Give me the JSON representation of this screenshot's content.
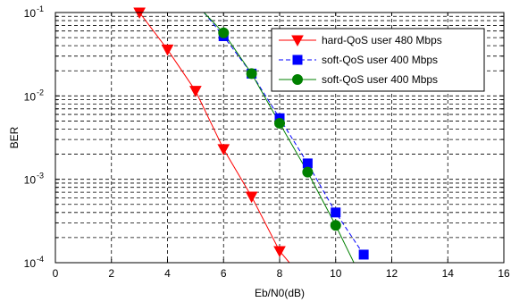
{
  "chart_data": {
    "type": "line",
    "xlabel": "Eb/N0(dB)",
    "ylabel": "BER",
    "xlim": [
      0,
      16
    ],
    "ylim": [
      0.0001,
      0.1
    ],
    "yscale": "log",
    "grid": true,
    "legend_position": "top-right",
    "x_ticks": [
      0,
      2,
      4,
      6,
      8,
      10,
      12,
      14,
      16
    ],
    "x_tick_labels": [
      "0",
      "2",
      "4",
      "6",
      "8",
      "10",
      "12",
      "14",
      "16"
    ],
    "y_ticks": [
      0.0001,
      0.001,
      0.01,
      0.1
    ],
    "y_tick_labels": [
      {
        "base": "10",
        "exp": "-4"
      },
      {
        "base": "10",
        "exp": "-3"
      },
      {
        "base": "10",
        "exp": "-2"
      },
      {
        "base": "10",
        "exp": "-1"
      }
    ],
    "series": [
      {
        "name": "hard-QoS user 480 Mbps",
        "color": "#ff0000",
        "line_style": "solid",
        "marker": "triangle-down",
        "x": [
          3,
          4,
          5,
          6,
          7,
          8,
          8.35
        ],
        "y": [
          0.1,
          0.036,
          0.0115,
          0.0023,
          0.00062,
          0.000138,
          0.0001
        ]
      },
      {
        "name": "soft-QoS user 400 Mbps",
        "color": "#0000ff",
        "line_style": "dashed",
        "marker": "square",
        "x": [
          5.3,
          6,
          7,
          8,
          9,
          10,
          11
        ],
        "y": [
          0.1,
          0.052,
          0.0185,
          0.0054,
          0.00155,
          0.0004,
          0.000125
        ]
      },
      {
        "name": "soft-QoS user 400 Mbps",
        "color": "#008000",
        "line_style": "solid",
        "marker": "circle",
        "x": [
          5.3,
          6,
          7,
          8,
          9,
          10,
          10.65
        ],
        "y": [
          0.1,
          0.057,
          0.0185,
          0.0047,
          0.00122,
          0.00028,
          0.0001
        ]
      }
    ]
  }
}
